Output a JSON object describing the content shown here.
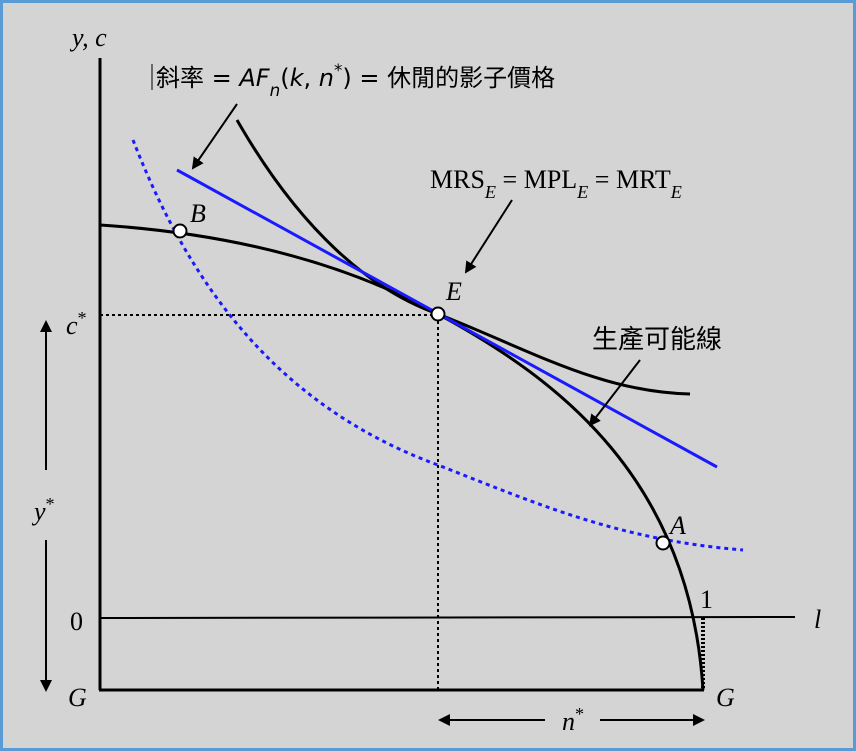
{
  "axes": {
    "y_label": [
      {
        "text": "y, c",
        "italic": true
      }
    ],
    "x_label": [
      {
        "text": "l",
        "italic": true
      }
    ],
    "origin_label": [
      {
        "text": "0"
      }
    ],
    "one_label": [
      {
        "text": "1"
      }
    ],
    "g_left": [
      {
        "text": "G",
        "italic": true
      }
    ],
    "g_right": [
      {
        "text": "G",
        "italic": true
      }
    ]
  },
  "levels": {
    "c_star": [
      {
        "text": "c",
        "italic": true
      },
      {
        "text": "*",
        "sup": true
      }
    ],
    "y_star": [
      {
        "text": "y",
        "italic": true
      },
      {
        "text": "*",
        "sup": true
      }
    ],
    "n_star": [
      {
        "text": "n",
        "italic": true
      },
      {
        "text": "*",
        "sup": true
      }
    ]
  },
  "points": {
    "B": [
      {
        "text": "B",
        "italic": true
      }
    ],
    "E": [
      {
        "text": "E",
        "italic": true
      }
    ],
    "A": [
      {
        "text": "A",
        "italic": true
      }
    ]
  },
  "annotations": {
    "slope": [
      {
        "text": "斜率 = "
      },
      {
        "text": "AF",
        "italic": true
      },
      {
        "text": "n",
        "italic": true,
        "sub": true
      },
      {
        "text": "("
      },
      {
        "text": "k",
        "italic": true
      },
      {
        "text": ", "
      },
      {
        "text": "n",
        "italic": true
      },
      {
        "text": "*",
        "sup": true
      },
      {
        "text": ") = 休閒的影子價格"
      }
    ],
    "mrs": [
      {
        "text": "MRS"
      },
      {
        "text": "E",
        "italic": true,
        "sub": true
      },
      {
        "text": " = MPL"
      },
      {
        "text": "E",
        "italic": true,
        "sub": true
      },
      {
        "text": " = MRT"
      },
      {
        "text": "E",
        "italic": true,
        "sub": true
      }
    ],
    "ppf": [
      {
        "text": "生產可能線"
      }
    ]
  }
}
